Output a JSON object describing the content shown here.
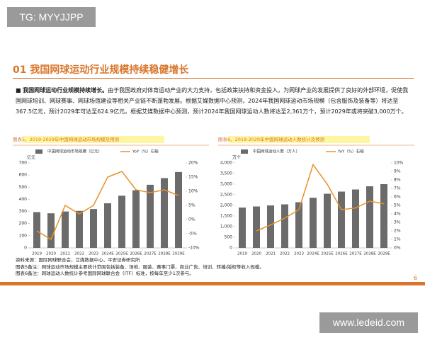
{
  "watermark_top": "TG: MYYJJPP",
  "heading": "01 我国网球运动行业规模持续稳健增长",
  "paragraph": {
    "lead": "我国网球运动行业规模持续增长。",
    "text": "由于我国政府对体育运动产业的大力支持，包括政策扶持和资金投入，为网球产业的发展提供了良好的外部环境，促使我国网球培训、网球赛事、网球场馆建设等相关产业链不断蓬勃发展。根据艾媒数据中心预测，2024年我国网球运动市场规模（包含服饰及装备等）将达至367.5亿元，预计2029年可达至624.9亿元。根据艾媒数据中心预测，预计2024年我国网球运动人数将达至2,361万个，预计2029年或将突破3,000万个。"
  },
  "chart_data": [
    {
      "type": "combo",
      "title": "图表5、2019-2029年中国网球运动市场规模及预测",
      "y_label": "亿元",
      "categories": [
        "2019",
        "2020",
        "2021",
        "2022",
        "2023",
        "2024E",
        "2025E",
        "2026E",
        "2027E",
        "2028E",
        "2029E"
      ],
      "series": [
        {
          "name": "中国网球运动市场规模（亿元）",
          "color": "#6b6b6b",
          "type": "bar",
          "values": [
            295,
            285,
            300,
            305,
            320,
            367.5,
            430,
            475,
            520,
            575,
            624.9
          ]
        },
        {
          "name": "YoY（%）右轴",
          "color": "#e8902a",
          "type": "line",
          "axis": "y2",
          "values": [
            -4,
            -7,
            5,
            2,
            5,
            15,
            17,
            10.5,
            9.5,
            10.5,
            8.5
          ]
        }
      ],
      "ylim": [
        0,
        700
      ],
      "yticks": [
        0,
        100,
        200,
        300,
        400,
        500,
        600,
        700
      ],
      "y2lim": [
        -10,
        20
      ],
      "y2ticks": [
        {
          "value": -10,
          "label": "-10%"
        },
        {
          "value": -5,
          "label": "-5%"
        },
        {
          "value": 0,
          "label": "0%"
        },
        {
          "value": 5,
          "label": "5%"
        },
        {
          "value": 10,
          "label": "10%"
        },
        {
          "value": 15,
          "label": "15%"
        },
        {
          "value": 20,
          "label": "20%"
        }
      ]
    },
    {
      "type": "combo",
      "title": "图表6、2019-2029年中国网球运动人数统计及预测",
      "y_label": "万个",
      "categories": [
        "2019",
        "2020",
        "2021",
        "2022",
        "2023",
        "2024E",
        "2025E",
        "2026E",
        "2027E",
        "2028E",
        "2029E"
      ],
      "series": [
        {
          "name": "中国网球运动人数（万人）",
          "color": "#6b6b6b",
          "type": "bar",
          "values": [
            1900,
            1950,
            2000,
            2050,
            2150,
            2361,
            2550,
            2650,
            2750,
            2900,
            3000
          ]
        },
        {
          "name": "YoY（%）右轴",
          "color": "#e8902a",
          "type": "line",
          "axis": "y2",
          "values": [
            null,
            2,
            2.7,
            3.5,
            4.5,
            9.8,
            7.5,
            4.5,
            4.7,
            5.5,
            5.2
          ]
        }
      ],
      "ylim": [
        0,
        4000
      ],
      "yticks": [
        0,
        500,
        {
          "value": 1000,
          "label": "1,000"
        },
        {
          "value": 1500,
          "label": "1,500"
        },
        {
          "value": 2000,
          "label": "2,000"
        },
        {
          "value": 2500,
          "label": "2,500"
        },
        {
          "value": 3000,
          "label": "3,000"
        },
        {
          "value": 3500,
          "label": "3,500"
        },
        {
          "value": 4000,
          "label": "4,000"
        }
      ],
      "y2lim": [
        0,
        10
      ],
      "y2ticks": [
        {
          "value": 0,
          "label": "0%"
        },
        {
          "value": 1,
          "label": "1%"
        },
        {
          "value": 2,
          "label": "2%"
        },
        {
          "value": 3,
          "label": "3%"
        },
        {
          "value": 4,
          "label": "4%"
        },
        {
          "value": 5,
          "label": "5%"
        },
        {
          "value": 6,
          "label": "6%"
        },
        {
          "value": 7,
          "label": "7%"
        },
        {
          "value": 8,
          "label": "8%"
        },
        {
          "value": 9,
          "label": "9%"
        },
        {
          "value": 10,
          "label": "10%"
        }
      ]
    }
  ],
  "notes": [
    "资料来源：国际网球联合会，艾媒数据中心，平安证券研究所",
    "图表5备注：网球运动市场规模主要统计范围包括装备、场地、服装、赛事门票、商业广告、培训、转播/版权等收入规模。",
    "图表6备注：网球运动人数统计参考国际网球联合会（ITF）标准，按每年至少1次参与。"
  ],
  "page_number": "6",
  "watermark_bottom": "www.ledeid.com"
}
